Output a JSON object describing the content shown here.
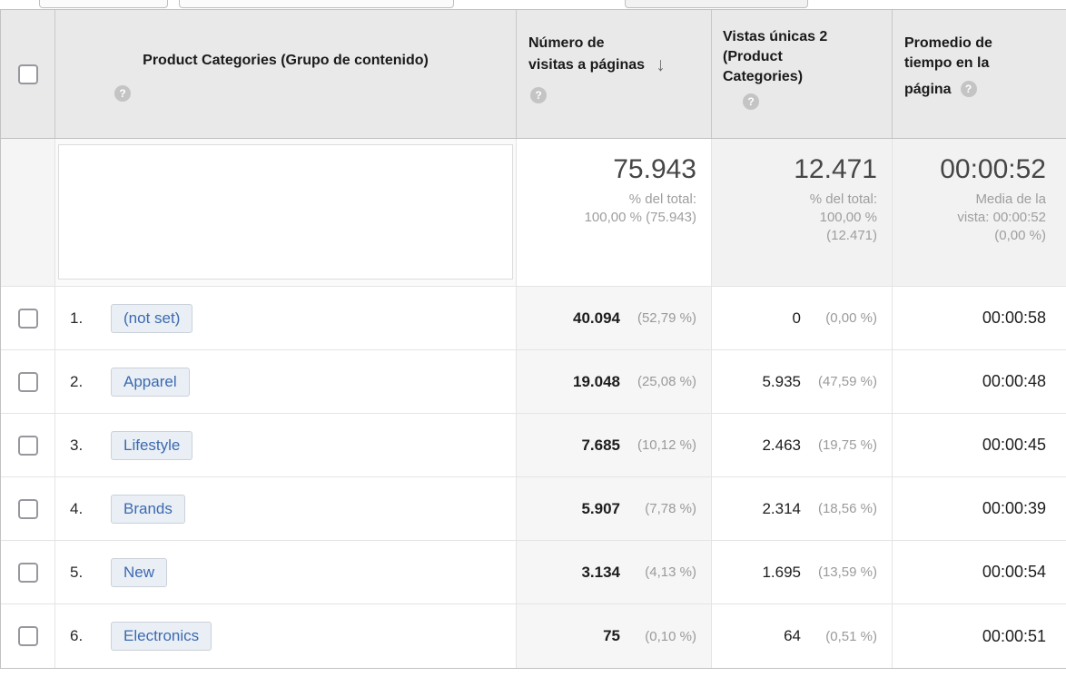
{
  "icons": {
    "help_glyph": "?",
    "sort_desc_glyph": "↓"
  },
  "colors": {
    "header_bg": "#e9e9e9",
    "sorted_column_bg": "#f6f6f6",
    "summary_tint_bg": "#f2f2f2",
    "chip_bg": "#e9eff5",
    "chip_border": "#cbd1d8",
    "link_blue": "#3c6ab0"
  },
  "table": {
    "columns": [
      {
        "id": "product_categories",
        "label": "Product Categories (Grupo de contenido)",
        "lines": [
          "Product Categories (Grupo de contenido)"
        ],
        "help": true
      },
      {
        "id": "pageviews",
        "label": "Número de visitas a páginas",
        "lines": [
          "Número de",
          "visitas a páginas"
        ],
        "sort": "desc",
        "help": true
      },
      {
        "id": "unique_pageviews",
        "label": "Vistas únicas 2 (Product Categories)",
        "lines": [
          "Vistas únicas 2",
          "(Product",
          "Categories)"
        ],
        "help": true
      },
      {
        "id": "avg_time_on_page",
        "label": "Promedio de tiempo en la página",
        "lines": [
          "Promedio de",
          "tiempo en la",
          "página"
        ],
        "help": true
      }
    ],
    "summary": {
      "pageviews": {
        "value": "75.943",
        "caption_lines": [
          "% del total:",
          "100,00 % (75.943)"
        ]
      },
      "unique_pageviews": {
        "value": "12.471",
        "caption_lines": [
          "% del total:",
          "100,00 %",
          "(12.471)"
        ]
      },
      "avg_time_on_page": {
        "value": "00:00:52",
        "caption_lines": [
          "Media de la",
          "vista: 00:00:52",
          "(0,00 %)"
        ]
      }
    },
    "rows": [
      {
        "index": "1.",
        "category": "(not set)",
        "pageviews": "40.094",
        "pageviews_pct": "(52,79 %)",
        "unique_pageviews": "0",
        "unique_pageviews_pct": "(0,00 %)",
        "avg_time": "00:00:58"
      },
      {
        "index": "2.",
        "category": "Apparel",
        "pageviews": "19.048",
        "pageviews_pct": "(25,08 %)",
        "unique_pageviews": "5.935",
        "unique_pageviews_pct": "(47,59 %)",
        "avg_time": "00:00:48"
      },
      {
        "index": "3.",
        "category": "Lifestyle",
        "pageviews": "7.685",
        "pageviews_pct": "(10,12 %)",
        "unique_pageviews": "2.463",
        "unique_pageviews_pct": "(19,75 %)",
        "avg_time": "00:00:45"
      },
      {
        "index": "4.",
        "category": "Brands",
        "pageviews": "5.907",
        "pageviews_pct": "(7,78 %)",
        "unique_pageviews": "2.314",
        "unique_pageviews_pct": "(18,56 %)",
        "avg_time": "00:00:39"
      },
      {
        "index": "5.",
        "category": "New",
        "pageviews": "3.134",
        "pageviews_pct": "(4,13 %)",
        "unique_pageviews": "1.695",
        "unique_pageviews_pct": "(13,59 %)",
        "avg_time": "00:00:54"
      },
      {
        "index": "6.",
        "category": "Electronics",
        "pageviews": "75",
        "pageviews_pct": "(0,10 %)",
        "unique_pageviews": "64",
        "unique_pageviews_pct": "(0,51 %)",
        "avg_time": "00:00:51"
      }
    ]
  }
}
